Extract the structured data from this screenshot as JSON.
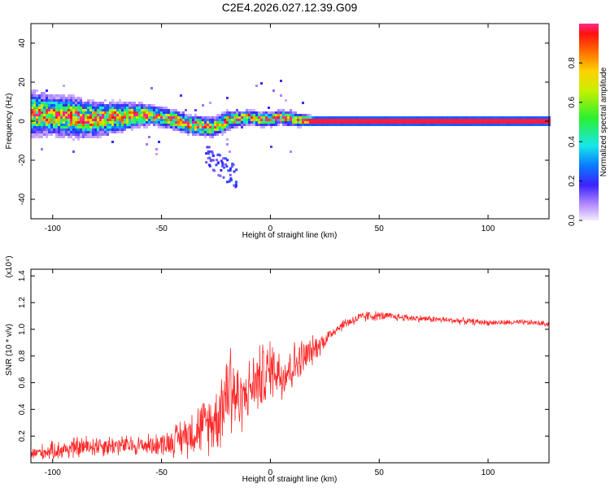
{
  "title": "C2E4.2026.027.12.39.G09",
  "colors": {
    "line": "#ff2a2a",
    "axis": "#000000",
    "background": "#ffffff"
  },
  "chart_data": [
    {
      "type": "heatmap",
      "name": "spectrogram",
      "xlabel": "Height of straight line (km)",
      "ylabel": "Frequency (Hz)",
      "xlim": [
        -110,
        128
      ],
      "ylim": [
        -50,
        50
      ],
      "xticks": [
        -100,
        -50,
        0,
        50,
        100
      ],
      "xtick_labels": [
        "-100",
        "-50",
        "0",
        "50",
        "100"
      ],
      "yticks": [
        -40,
        -20,
        0,
        20,
        40
      ],
      "ytick_labels": [
        "-40",
        "-20",
        "0",
        "20",
        "40"
      ],
      "ridge": {
        "x": [
          -110,
          -100,
          -90,
          -80,
          -70,
          -60,
          -55,
          -50,
          -45,
          -40,
          -35,
          -30,
          -25,
          -20,
          -15,
          -10,
          -5,
          0,
          5,
          10,
          20,
          30,
          50,
          80,
          100,
          128
        ],
        "freq": [
          4,
          3,
          2,
          1,
          2,
          3,
          3,
          2,
          1,
          -1,
          -2,
          -3,
          -3,
          0,
          1,
          2,
          1,
          1,
          2,
          1,
          0,
          0,
          0,
          0,
          0,
          0
        ],
        "spread": [
          9,
          8,
          8,
          7,
          6,
          5,
          4,
          4,
          4,
          4,
          4,
          4,
          4,
          4,
          3,
          3,
          3,
          3,
          3,
          3,
          2,
          2,
          2,
          2,
          2,
          2
        ]
      },
      "colorbar": {
        "label": "Normalized spectral amplitude",
        "range": [
          0,
          1
        ],
        "ticks": [
          0,
          0.2,
          0.4,
          0.6,
          0.8
        ],
        "tick_labels": [
          "0.0",
          "0.2",
          "0.4",
          "0.6",
          "0.8"
        ]
      }
    },
    {
      "type": "line",
      "name": "snr",
      "xlabel": "Height of straight line (km)",
      "ylabel": "SNR (10 * v/v)",
      "multiplier_label": "(x10⁴)",
      "xlim": [
        -110,
        128
      ],
      "ylim": [
        0,
        1.45
      ],
      "xticks": [
        -100,
        -50,
        0,
        50,
        100
      ],
      "xtick_labels": [
        "-100",
        "-50",
        "0",
        "50",
        "100"
      ],
      "yticks": [
        0.2,
        0.4,
        0.6,
        0.8,
        1.0,
        1.2,
        1.4
      ],
      "ytick_labels": [
        "0.2",
        "0.4",
        "0.6",
        "0.8",
        "1.0",
        "1.2",
        "1.4"
      ],
      "series": [
        {
          "name": "SNR",
          "x": [
            -110,
            -100,
            -90,
            -80,
            -70,
            -60,
            -50,
            -45,
            -40,
            -35,
            -30,
            -25,
            -22,
            -20,
            -18,
            -16,
            -14,
            -12,
            -10,
            -8,
            -6,
            -4,
            -2,
            0,
            2,
            5,
            8,
            10,
            15,
            20,
            25,
            30,
            35,
            40,
            45,
            50,
            60,
            70,
            80,
            90,
            100,
            110,
            120,
            128
          ],
          "y": [
            0.07,
            0.09,
            0.11,
            0.13,
            0.13,
            0.13,
            0.14,
            0.16,
            0.2,
            0.24,
            0.28,
            0.33,
            0.45,
            0.55,
            0.62,
            0.5,
            0.45,
            0.5,
            0.55,
            0.58,
            0.62,
            0.64,
            0.66,
            0.7,
            0.72,
            0.66,
            0.7,
            0.72,
            0.78,
            0.85,
            0.92,
            1.0,
            1.05,
            1.08,
            1.1,
            1.1,
            1.09,
            1.08,
            1.07,
            1.06,
            1.05,
            1.05,
            1.05,
            1.04
          ],
          "noise": [
            0.06,
            0.08,
            0.1,
            0.1,
            0.09,
            0.09,
            0.1,
            0.13,
            0.18,
            0.22,
            0.25,
            0.3,
            0.38,
            0.45,
            0.55,
            0.4,
            0.3,
            0.25,
            0.25,
            0.28,
            0.3,
            0.3,
            0.3,
            0.28,
            0.25,
            0.25,
            0.25,
            0.22,
            0.18,
            0.12,
            0.08,
            0.05,
            0.05,
            0.05,
            0.05,
            0.04,
            0.035,
            0.03,
            0.03,
            0.03,
            0.025,
            0.025,
            0.025,
            0.025
          ]
        }
      ]
    }
  ]
}
